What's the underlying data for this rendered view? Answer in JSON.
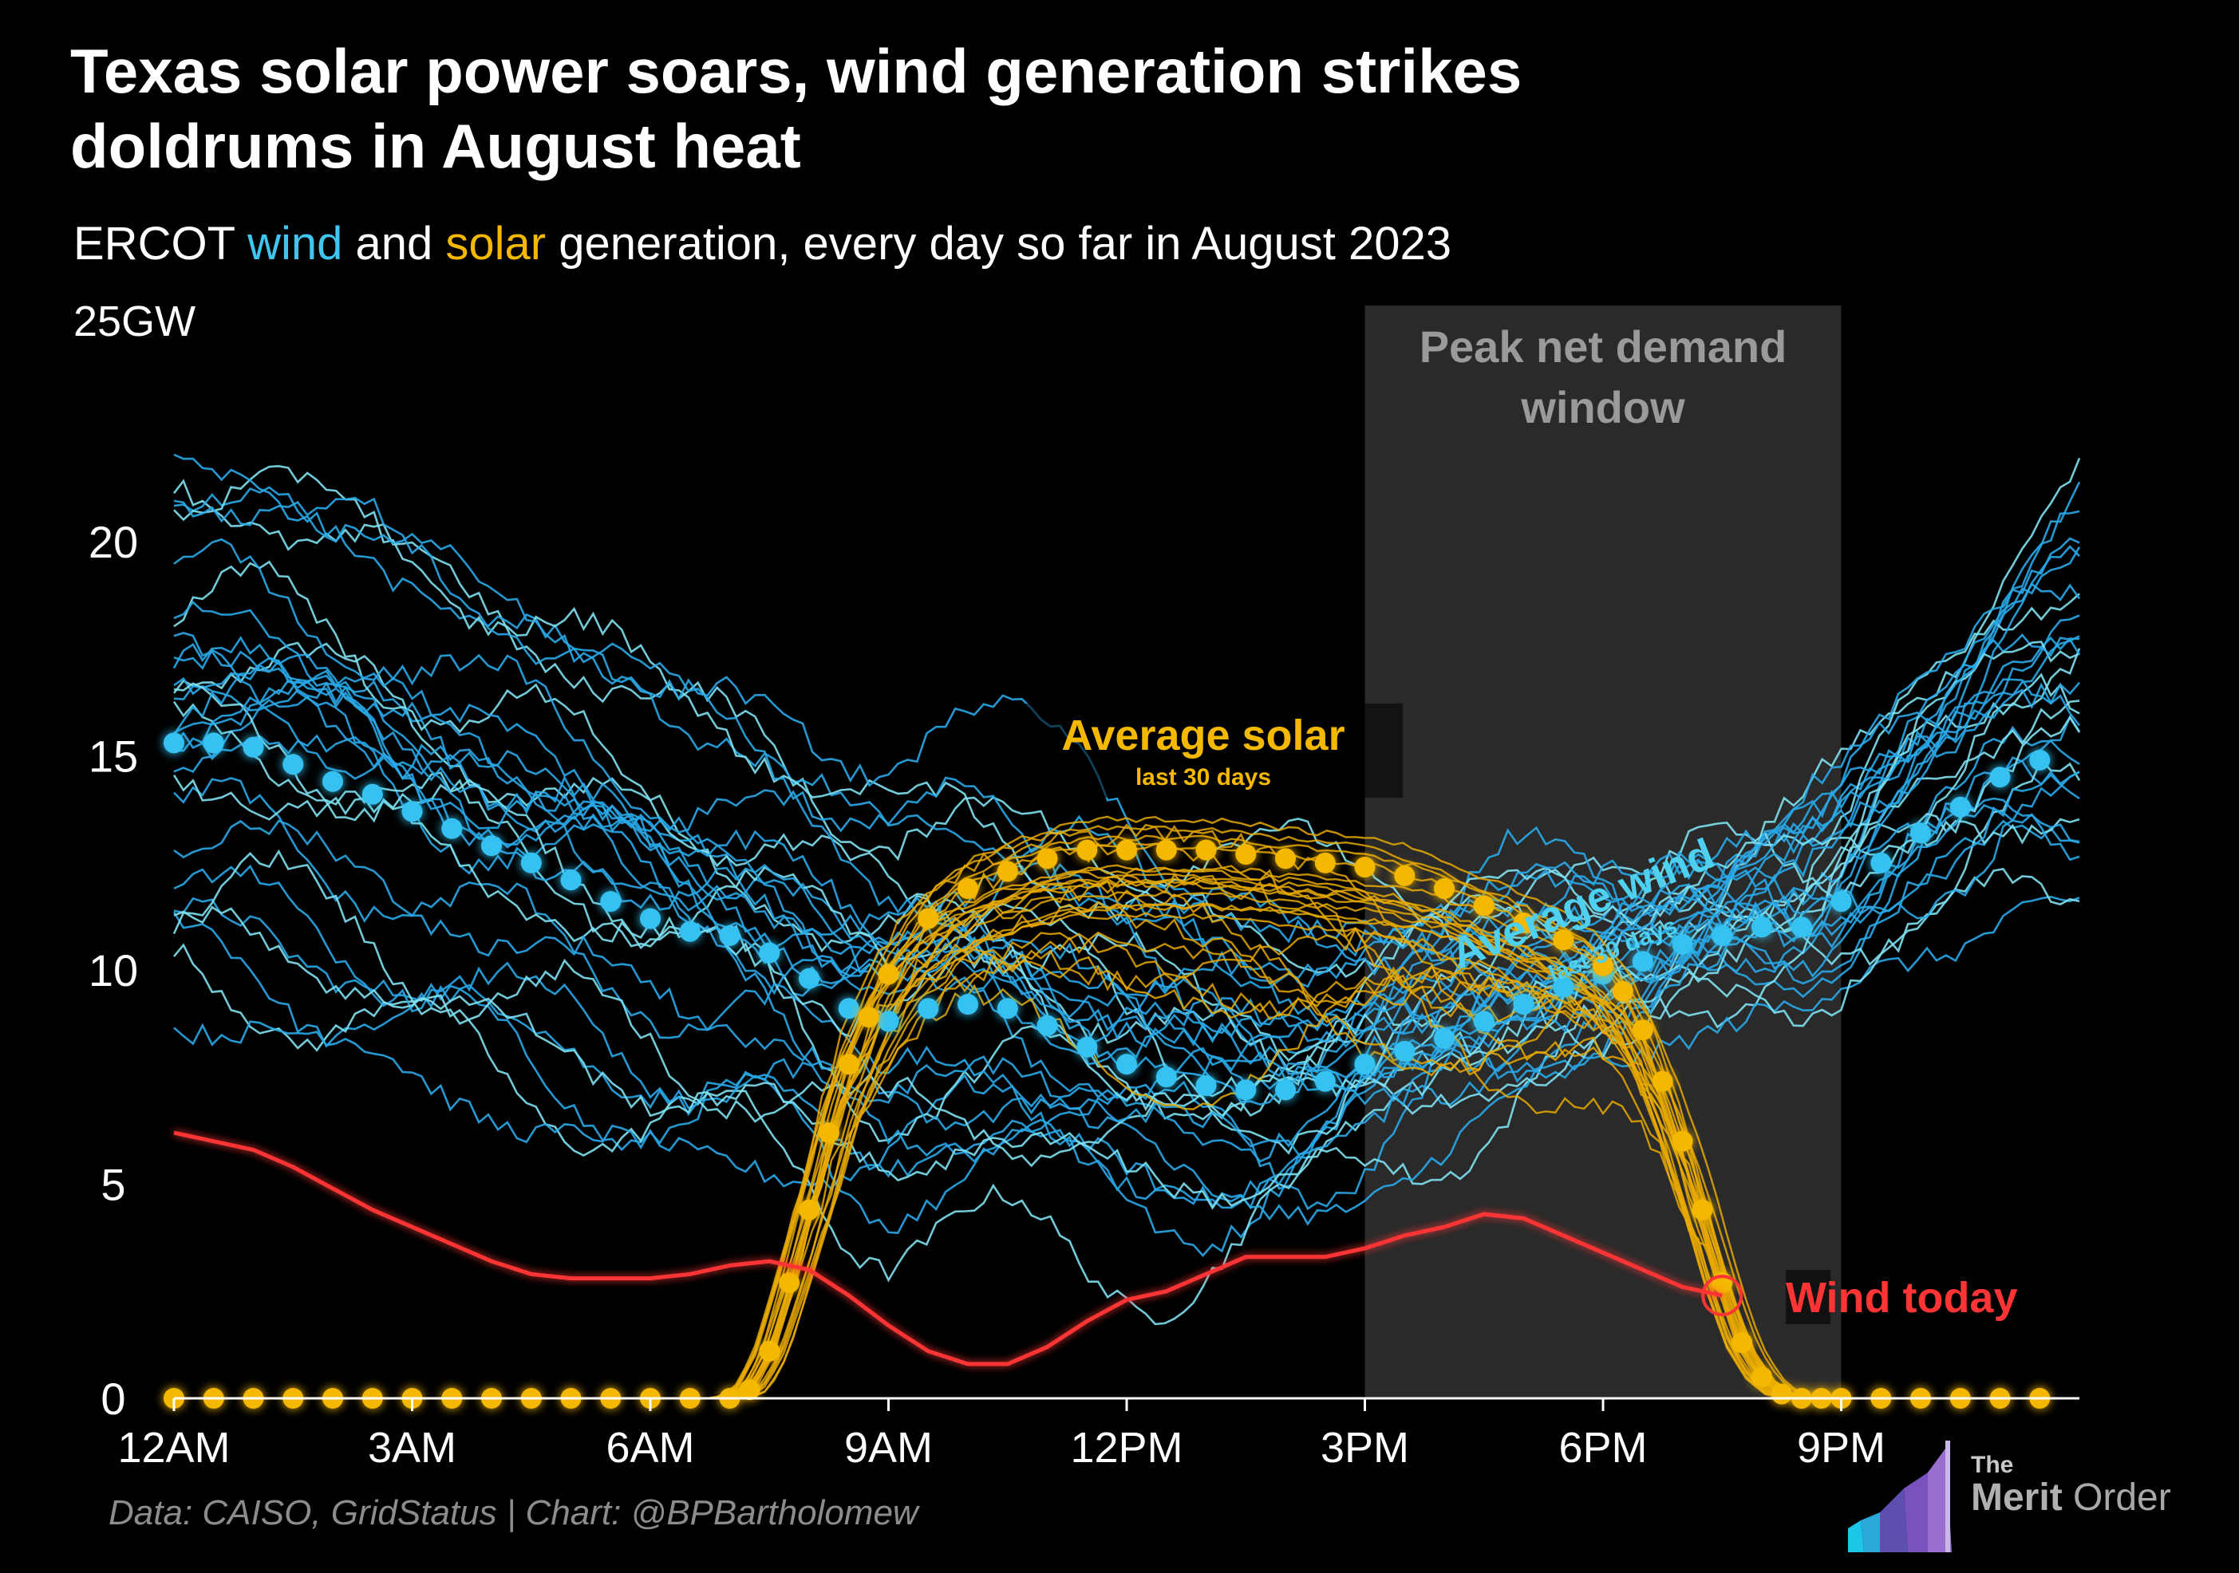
{
  "title_lines": [
    "Texas solar power soars, wind generation strikes",
    "doldrums in August heat"
  ],
  "subtitle": {
    "prefix": "ERCOT ",
    "wind": "wind",
    "and": " and ",
    "solar": "solar",
    "suffix": " generation, every day so far in August 2023"
  },
  "unit": "25GW",
  "footer": "Data: CAISO, GridStatus | Chart: @BPBartholomew",
  "logo": {
    "the": "The",
    "merit": "Merit",
    "order": " Order"
  },
  "colors": {
    "wind": "#29b6ee",
    "wind_light": "#7ee0f0",
    "solar": "#f5b800",
    "today": "#ff3535",
    "shade": "#2a2a2a",
    "axis": "#ffffff"
  },
  "chart_data": {
    "type": "line",
    "title": "Texas solar power soars, wind generation strikes doldrums in August heat",
    "subtitle": "ERCOT wind and solar generation, every day so far in August 2023",
    "ylabel": "GW",
    "ylim": [
      0,
      25
    ],
    "xlim": [
      0,
      24
    ],
    "x_ticks": [
      0,
      3,
      6,
      9,
      12,
      15,
      18,
      21
    ],
    "x_tick_labels": [
      "12AM",
      "3AM",
      "6AM",
      "9AM",
      "12PM",
      "3PM",
      "6PM",
      "9PM"
    ],
    "y_ticks": [
      0,
      5,
      10,
      15,
      20
    ],
    "y_tick_labels": [
      "0",
      "5",
      "10",
      "15",
      "20"
    ],
    "shaded_window": {
      "label_lines": [
        "Peak net demand",
        "window"
      ],
      "x_start": 15,
      "x_end": 21
    },
    "annotations": [
      {
        "name": "solar",
        "label": "Average solar",
        "sublabel": "last 30 days"
      },
      {
        "name": "wind",
        "label": "Average wind",
        "sublabel": "last 30 days"
      },
      {
        "name": "today",
        "label": "Wind today"
      }
    ],
    "series": [
      {
        "name": "Average wind (last 30 days)",
        "style": "dotted",
        "x": [
          0,
          0.5,
          1,
          1.5,
          2,
          2.5,
          3,
          3.5,
          4,
          4.5,
          5,
          5.5,
          6,
          6.5,
          7,
          7.5,
          8,
          8.5,
          9,
          9.5,
          10,
          10.5,
          11,
          11.5,
          12,
          12.5,
          13,
          13.5,
          14,
          14.5,
          15,
          15.5,
          16,
          16.5,
          17,
          17.5,
          18,
          18.5,
          19,
          19.5,
          20,
          20.5,
          21,
          21.5,
          22,
          22.5,
          23,
          23.5
        ],
        "values": [
          15.3,
          15.3,
          15.2,
          14.8,
          14.4,
          14.1,
          13.7,
          13.3,
          12.9,
          12.5,
          12.1,
          11.6,
          11.2,
          10.9,
          10.8,
          10.4,
          9.8,
          9.1,
          8.8,
          9.1,
          9.2,
          9.1,
          8.7,
          8.2,
          7.8,
          7.5,
          7.3,
          7.2,
          7.2,
          7.4,
          7.8,
          8.1,
          8.4,
          8.8,
          9.2,
          9.6,
          9.9,
          10.2,
          10.6,
          10.8,
          11.0,
          11.0,
          11.6,
          12.5,
          13.2,
          13.8,
          14.5,
          14.9
        ]
      },
      {
        "name": "Average solar (last 30 days)",
        "style": "dotted",
        "x": [
          0,
          0.5,
          1,
          1.5,
          2,
          2.5,
          3,
          3.5,
          4,
          4.5,
          5,
          5.5,
          6,
          6.5,
          7,
          7.25,
          7.5,
          7.75,
          8,
          8.25,
          8.5,
          8.75,
          9,
          9.5,
          10,
          10.5,
          11,
          11.5,
          12,
          12.5,
          13,
          13.5,
          14,
          14.5,
          15,
          15.5,
          16,
          16.5,
          17,
          17.5,
          18,
          18.25,
          18.5,
          18.75,
          19,
          19.25,
          19.5,
          19.75,
          20,
          20.25,
          20.5,
          20.75,
          21,
          21.5,
          22,
          22.5,
          23,
          23.5
        ],
        "values": [
          0,
          0,
          0,
          0,
          0,
          0,
          0,
          0,
          0,
          0,
          0,
          0,
          0,
          0,
          0,
          0.2,
          1.1,
          2.7,
          4.4,
          6.2,
          7.8,
          8.9,
          9.9,
          11.2,
          11.9,
          12.3,
          12.6,
          12.8,
          12.8,
          12.8,
          12.8,
          12.7,
          12.6,
          12.5,
          12.4,
          12.2,
          11.9,
          11.5,
          11.1,
          10.7,
          10.1,
          9.5,
          8.6,
          7.4,
          6.0,
          4.4,
          2.7,
          1.3,
          0.5,
          0.1,
          0,
          0,
          0,
          0,
          0,
          0,
          0,
          0
        ]
      },
      {
        "name": "Wind today",
        "style": "solid",
        "x": [
          0,
          0.5,
          1,
          1.5,
          2,
          2.5,
          3,
          3.5,
          4,
          4.5,
          5,
          5.5,
          6,
          6.5,
          7,
          7.5,
          8,
          8.5,
          9,
          9.5,
          10,
          10.5,
          11,
          11.5,
          12,
          12.5,
          13,
          13.5,
          14,
          14.5,
          15,
          15.5,
          16,
          16.5,
          17,
          17.5,
          18,
          18.5,
          19,
          19.5
        ],
        "values": [
          6.2,
          6.0,
          5.8,
          5.4,
          4.9,
          4.4,
          4.0,
          3.6,
          3.2,
          2.9,
          2.8,
          2.8,
          2.8,
          2.9,
          3.1,
          3.2,
          3.0,
          2.4,
          1.7,
          1.1,
          0.8,
          0.8,
          1.2,
          1.8,
          2.3,
          2.5,
          2.9,
          3.3,
          3.3,
          3.3,
          3.5,
          3.8,
          4.0,
          4.3,
          4.2,
          3.8,
          3.4,
          3.0,
          2.6,
          2.4
        ]
      }
    ]
  }
}
